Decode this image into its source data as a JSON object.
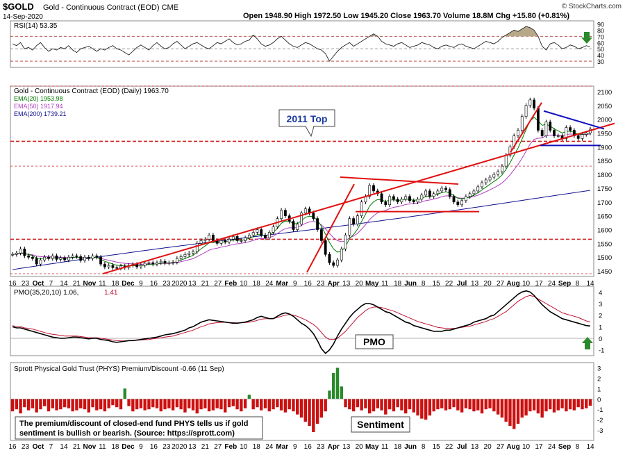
{
  "header": {
    "symbol": "$GOLD",
    "name": "Gold - Continuous Contract (EOD) CME",
    "date": "14-Sep-2020",
    "brand": "© StockCharts.com",
    "ohlc": "Open 1948.90  High 1972.50  Low 1945.20  Close 1963.70  Volume 18.8M  Chg +15.80 (+0.81%)",
    "chg_arrow": "▲"
  },
  "rsi_panel": {
    "label": "RSI(14) 53.35",
    "ticks": [
      "90",
      "70",
      "50",
      "30"
    ],
    "extra_ticks": [
      "80",
      "60",
      "40"
    ]
  },
  "price_panel": {
    "title": "Gold - Continuous Contract (EOD) (Daily) 1963.70",
    "legend": [
      {
        "text": "EMA(20) 1953.98",
        "color": "#007a00"
      },
      {
        "text": "EMA(50) 1917.94",
        "color": "#b040c0"
      },
      {
        "text": "EMA(200) 1739.21",
        "color": "#101090"
      }
    ],
    "annotation": "2011 Top",
    "y_ticks": [
      "2100",
      "2050",
      "2000",
      "1950",
      "1900",
      "1850",
      "1800",
      "1750",
      "1700",
      "1650",
      "1600",
      "1550",
      "1500",
      "1450"
    ]
  },
  "x_axis": {
    "labels_upper": [
      "16",
      "23",
      "Oct",
      "7",
      "14",
      "21",
      "Nov",
      "11",
      "18",
      "Dec",
      "9",
      "16",
      "23",
      "2020",
      "13",
      "21",
      "27",
      "Feb",
      "10",
      "18",
      "24",
      "Mar",
      "9",
      "16",
      "23",
      "Apr",
      "13",
      "20",
      "May",
      "11",
      "18",
      "Jun",
      "8",
      "15",
      "22",
      "Jul",
      "13",
      "20",
      "27",
      "Aug",
      "10",
      "17",
      "24",
      "Sep",
      "8",
      "14"
    ],
    "labels_lower": [
      "16",
      "23",
      "Oct",
      "7",
      "14",
      "21",
      "Nov",
      "11",
      "18",
      "Dec",
      "9",
      "16",
      "23",
      "2020",
      "13",
      "21",
      "27",
      "Feb",
      "10",
      "18",
      "24",
      "Mar",
      "9",
      "16",
      "23",
      "Apr",
      "13",
      "20",
      "May",
      "11",
      "18",
      "Jun",
      "8",
      "15",
      "22",
      "Jul",
      "13",
      "20",
      "27",
      "Aug",
      "10",
      "17",
      "24",
      "Sep",
      "8",
      "14"
    ]
  },
  "pmo_panel": {
    "label_main": "PMO(35,20,10) 1.06,",
    "label_signal": " 1.41",
    "annotation": "PMO",
    "ticks": [
      "4",
      "3",
      "2",
      "1",
      "0",
      "-1"
    ]
  },
  "sentiment_panel": {
    "label": "Sprott Physical Gold Trust (PHYS) Premium/Discount -0.66 (11 Sep)",
    "annotation": "Sentiment",
    "note_line1": "The premium/discount of closed-end fund PHYS tells us if gold",
    "note_line2": "sentiment is bullish or bearish. (Source: https://sprott.com)",
    "ticks": [
      "3",
      "2",
      "1",
      "0",
      "-1",
      "-2",
      "-3"
    ]
  },
  "colors": {
    "candle": "#000000",
    "ema20": "#007a00",
    "ema50": "#b040c0",
    "ema200": "#101090",
    "trendline": "#e01010",
    "pennant": "#1010c0",
    "hist_pos": "#2a8a2a",
    "hist_neg": "#cc1010",
    "signal": "#c01030",
    "arrow_down": "#2a8a2a",
    "arrow_up": "#2a8a2a"
  },
  "chart_data": [
    {
      "type": "line",
      "title": "RSI(14) 53.35",
      "ylim": [
        20,
        95
      ],
      "series": [
        {
          "name": "RSI(14)",
          "values": [
            58,
            55,
            60,
            50,
            52,
            48,
            55,
            60,
            52,
            46,
            50,
            48,
            52,
            50,
            55,
            48,
            44,
            50,
            52,
            54,
            50,
            46,
            50,
            48,
            52,
            55,
            50,
            48,
            44,
            40,
            46,
            52,
            56,
            52,
            48,
            55,
            60,
            54,
            50,
            52,
            58,
            62,
            56,
            50,
            54,
            58,
            60,
            56,
            52,
            50,
            55,
            60,
            58,
            62,
            66,
            60,
            56,
            58,
            62,
            64,
            72,
            66,
            58,
            54,
            56,
            60,
            66,
            70,
            64,
            58,
            54,
            52,
            56,
            60,
            58,
            54,
            50,
            48,
            42,
            30,
            38,
            46,
            52,
            56,
            60,
            54,
            58,
            62,
            66,
            70,
            74,
            70,
            62,
            58,
            56,
            54,
            58,
            60,
            56,
            52,
            54,
            56,
            60,
            58,
            56,
            52,
            50,
            54,
            56,
            54,
            52,
            56,
            58,
            54,
            52,
            50,
            54,
            58,
            62,
            60,
            58,
            62,
            68,
            72,
            76,
            80,
            78,
            82,
            86,
            84,
            80,
            70,
            54,
            48,
            58,
            60,
            56,
            50,
            52,
            56,
            54,
            50,
            52,
            55,
            53
          ]
        }
      ]
    },
    {
      "type": "line",
      "title": "Gold - Continuous Contract (EOD) (Daily) 1963.70",
      "ylim": [
        1430,
        2120
      ],
      "series": [
        {
          "name": "Gold",
          "values": [
            1510,
            1515,
            1530,
            1505,
            1500,
            1495,
            1475,
            1490,
            1500,
            1495,
            1505,
            1492,
            1498,
            1490,
            1500,
            1505,
            1502,
            1488,
            1500,
            1495,
            1505,
            1500,
            1475,
            1465,
            1470,
            1462,
            1460,
            1468,
            1462,
            1470,
            1474,
            1465,
            1470,
            1478,
            1480,
            1475,
            1480,
            1485,
            1478,
            1480,
            1482,
            1495,
            1502,
            1510,
            1515,
            1520,
            1550,
            1560,
            1565,
            1580,
            1560,
            1550,
            1560,
            1555,
            1565,
            1575,
            1560,
            1560,
            1570,
            1580,
            1590,
            1600,
            1580,
            1570,
            1590,
            1610,
            1640,
            1670,
            1650,
            1630,
            1600,
            1620,
            1660,
            1675,
            1660,
            1640,
            1600,
            1560,
            1510,
            1480,
            1470,
            1490,
            1530,
            1580,
            1640,
            1620,
            1650,
            1700,
            1720,
            1760,
            1740,
            1730,
            1700,
            1690,
            1720,
            1710,
            1700,
            1710,
            1720,
            1705,
            1700,
            1710,
            1725,
            1740,
            1720,
            1730,
            1740,
            1750,
            1745,
            1720,
            1700,
            1690,
            1705,
            1720,
            1730,
            1740,
            1755,
            1770,
            1780,
            1790,
            1800,
            1810,
            1830,
            1870,
            1900,
            1940,
            1960,
            2010,
            2050,
            2070,
            2040,
            1960,
            1940,
            1990,
            1960,
            1940,
            1940,
            1930,
            1970,
            1960,
            1940,
            1930,
            1945,
            1950,
            1964
          ]
        },
        {
          "name": "EMA(20)",
          "values": [
            1954
          ]
        },
        {
          "name": "EMA(50)",
          "values": [
            1918
          ]
        },
        {
          "name": "EMA(200)",
          "values": [
            1739
          ]
        }
      ]
    },
    {
      "type": "line",
      "title": "PMO(35,20,10) 1.06, 1.41",
      "ylim": [
        -1.5,
        4.5
      ],
      "series": [
        {
          "name": "PMO",
          "values": [
            1.0,
            0.9,
            0.9,
            0.8,
            0.7,
            0.6,
            0.5,
            0.4,
            0.3,
            0.2,
            0.1,
            0.05,
            0.0,
            0.0,
            0.05,
            0.1,
            0.1,
            0.05,
            0.0,
            -0.05,
            0.0,
            0.0,
            -0.1,
            -0.15,
            -0.2,
            -0.3,
            -0.35,
            -0.3,
            -0.25,
            -0.2,
            -0.2,
            -0.15,
            -0.1,
            -0.05,
            0.0,
            0.05,
            0.1,
            0.2,
            0.3,
            0.35,
            0.4,
            0.5,
            0.6,
            0.7,
            0.9,
            1.0,
            1.2,
            1.4,
            1.5,
            1.6,
            1.55,
            1.5,
            1.45,
            1.4,
            1.35,
            1.3,
            1.3,
            1.35,
            1.4,
            1.5,
            1.6,
            1.8,
            1.9,
            1.8,
            1.7,
            1.7,
            1.9,
            2.1,
            2.2,
            2.1,
            1.9,
            1.6,
            1.3,
            1.1,
            0.8,
            0.4,
            -0.2,
            -0.9,
            -1.3,
            -1.0,
            -0.5,
            0.2,
            0.8,
            1.3,
            1.8,
            2.2,
            2.5,
            2.8,
            3.0,
            3.0,
            2.9,
            2.7,
            2.5,
            2.3,
            2.2,
            2.0,
            1.8,
            1.6,
            1.4,
            1.3,
            1.1,
            1.0,
            0.9,
            0.8,
            0.7,
            0.6,
            0.6,
            0.6,
            0.7,
            0.7,
            0.8,
            0.9,
            1.0,
            1.1,
            1.2,
            1.4,
            1.5,
            1.6,
            1.7,
            1.9,
            2.0,
            2.3,
            2.6,
            2.9,
            3.2,
            3.5,
            3.8,
            4.0,
            4.1,
            4.0,
            3.7,
            3.3,
            2.9,
            2.6,
            2.3,
            2.1,
            1.9,
            1.7,
            1.6,
            1.5,
            1.4,
            1.3,
            1.2,
            1.1,
            1.06
          ]
        },
        {
          "name": "Signal",
          "values": [
            1.1,
            1.0,
            1.0,
            0.9,
            0.85,
            0.8,
            0.7,
            0.6,
            0.5,
            0.4,
            0.35,
            0.3,
            0.25,
            0.2,
            0.2,
            0.2,
            0.2,
            0.15,
            0.1,
            0.05,
            0.05,
            0.05,
            0.0,
            -0.05,
            -0.1,
            -0.15,
            -0.2,
            -0.22,
            -0.22,
            -0.2,
            -0.2,
            -0.18,
            -0.15,
            -0.12,
            -0.1,
            -0.05,
            0.0,
            0.05,
            0.1,
            0.15,
            0.2,
            0.3,
            0.4,
            0.5,
            0.6,
            0.7,
            0.85,
            1.0,
            1.1,
            1.25,
            1.3,
            1.35,
            1.38,
            1.38,
            1.36,
            1.35,
            1.33,
            1.34,
            1.36,
            1.4,
            1.45,
            1.55,
            1.65,
            1.7,
            1.7,
            1.7,
            1.8,
            1.9,
            2.0,
            2.05,
            2.0,
            1.9,
            1.75,
            1.6,
            1.4,
            1.2,
            0.9,
            0.5,
            0.1,
            -0.1,
            -0.1,
            0.0,
            0.3,
            0.6,
            1.0,
            1.4,
            1.8,
            2.1,
            2.4,
            2.6,
            2.7,
            2.7,
            2.65,
            2.55,
            2.45,
            2.35,
            2.2,
            2.05,
            1.9,
            1.75,
            1.6,
            1.45,
            1.35,
            1.25,
            1.15,
            1.05,
            0.95,
            0.9,
            0.85,
            0.85,
            0.85,
            0.9,
            0.95,
            1.0,
            1.05,
            1.15,
            1.25,
            1.35,
            1.45,
            1.6,
            1.7,
            1.9,
            2.1,
            2.3,
            2.6,
            2.9,
            3.2,
            3.4,
            3.6,
            3.7,
            3.6,
            3.4,
            3.2,
            3.0,
            2.8,
            2.6,
            2.4,
            2.2,
            2.1,
            2.0,
            1.9,
            1.8,
            1.65,
            1.5,
            1.41
          ]
        }
      ]
    },
    {
      "type": "bar",
      "title": "Sprott Physical Gold Trust (PHYS) Premium/Discount -0.66 (11 Sep)",
      "ylim": [
        -4,
        3.5
      ],
      "series": [
        {
          "name": "PHYS Premium/Discount",
          "values": [
            -1.2,
            -1.0,
            -1.4,
            -0.8,
            -1.1,
            -0.9,
            -1.3,
            -1.0,
            -0.7,
            -1.2,
            -0.9,
            -1.1,
            -1.0,
            -0.8,
            -0.9,
            -1.2,
            -1.1,
            -0.9,
            -1.0,
            -1.3,
            -0.8,
            -1.1,
            -1.0,
            -1.2,
            -0.9,
            -0.6,
            -0.8,
            -1.0,
            1.0,
            -0.7,
            -1.2,
            -1.0,
            -0.9,
            -1.1,
            -1.0,
            -0.8,
            -0.9,
            -1.2,
            -1.0,
            -0.9,
            -1.1,
            -0.8,
            -1.0,
            -1.3,
            -0.9,
            -1.1,
            -1.4,
            -1.0,
            -0.9,
            -1.2,
            -1.1,
            -0.9,
            -1.0,
            -1.3,
            -0.8,
            -0.7,
            -1.0,
            -1.2,
            -0.9,
            0.4,
            -1.0,
            -0.8,
            -1.1,
            -0.9,
            -1.2,
            -1.0,
            -0.8,
            -1.1,
            -1.3,
            -1.0,
            -1.2,
            -1.5,
            -1.8,
            -2.2,
            -2.6,
            -3.2,
            -2.4,
            -1.8,
            -1.2,
            0.8,
            2.5,
            3.0,
            1.2,
            -0.8,
            -1.0,
            -1.2,
            -0.8,
            -1.1,
            -0.9,
            -1.4,
            -1.2,
            -0.9,
            -1.1,
            -1.5,
            -1.0,
            -1.2,
            -0.8,
            -1.1,
            -1.4,
            -1.0,
            -1.3,
            -1.6,
            -1.9,
            -2.0,
            -1.6,
            -1.2,
            -1.0,
            -0.9,
            -1.1,
            -1.0,
            -0.8,
            -1.1,
            -1.3,
            -0.9,
            -1.0,
            -1.2,
            -1.1,
            -1.4,
            -1.0,
            -0.9,
            -1.2,
            -1.5,
            -1.8,
            -2.2,
            -2.6,
            -2.9,
            -2.4,
            -1.8,
            -1.6,
            -1.2,
            -1.1,
            -1.4,
            -1.8,
            -1.2,
            -1.0,
            -1.3,
            -1.1,
            -0.9,
            -1.2,
            -1.0,
            -1.1,
            -0.8,
            -1.0,
            -0.9,
            -0.66
          ]
        }
      ]
    }
  ]
}
